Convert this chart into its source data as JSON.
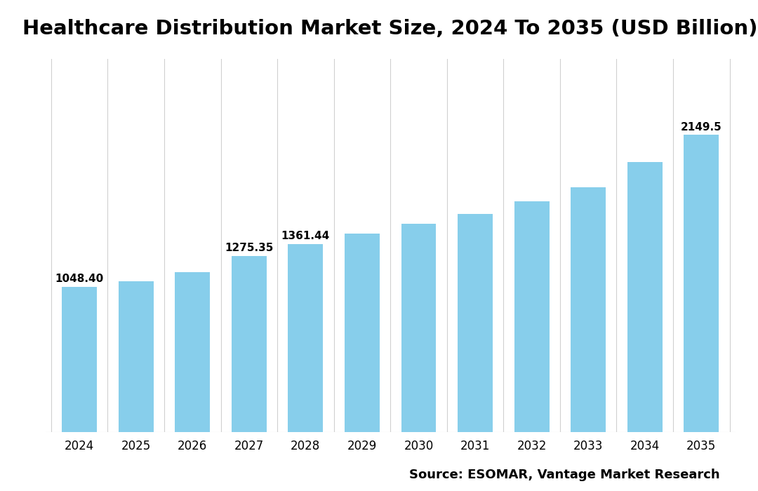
{
  "title": "Healthcare Distribution Market Size, 2024 To 2035 (USD Billion)",
  "categories": [
    "2024",
    "2025",
    "2026",
    "2027",
    "2028",
    "2029",
    "2030",
    "2031",
    "2032",
    "2033",
    "2034",
    "2035"
  ],
  "values": [
    1048.4,
    1090.0,
    1155.0,
    1275.35,
    1361.44,
    1435.0,
    1505.0,
    1578.0,
    1672.0,
    1772.0,
    1955.0,
    2149.5
  ],
  "labels": [
    "1048.40",
    null,
    null,
    "1275.35",
    "1361.44",
    null,
    null,
    null,
    null,
    null,
    null,
    "2149.5"
  ],
  "bar_color": "#87CEEB",
  "grid_color": "#d0d0d0",
  "background_color": "#ffffff",
  "text_color": "#000000",
  "source_text": "Source: ESOMAR, Vantage Market Research",
  "title_fontsize": 21,
  "label_fontsize": 11,
  "tick_fontsize": 12,
  "source_fontsize": 13,
  "ylim": [
    0,
    2700
  ],
  "bar_width": 0.62
}
